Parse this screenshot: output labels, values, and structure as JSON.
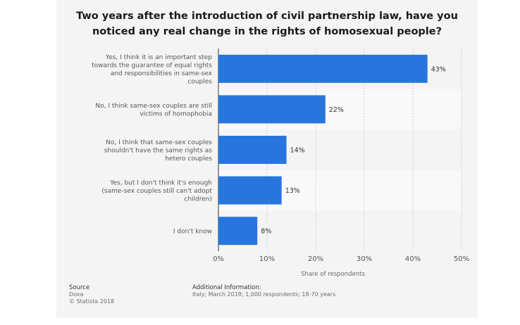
{
  "chart_data": {
    "type": "bar",
    "orientation": "horizontal",
    "title": "Two years after the introduction of civil partnership law, have you noticed any real change in the rights of homosexual people?",
    "categories": [
      "Yes, I think it is an important step towards the guarantee of equal rights and responsibilities in same-sex couples",
      "No, I think same-sex couples are still victims of homophobia",
      "No, I think that same-sex couples shouldn't have the same rights as hetero couples",
      "Yes, but I don't think it's enough (same-sex couples still can't adopt children)",
      "I don't know"
    ],
    "values": [
      43,
      22,
      14,
      13,
      8
    ],
    "value_labels": [
      "43%",
      "22%",
      "14%",
      "13%",
      "8%"
    ],
    "xlabel": "Share of respondents",
    "xlim": [
      0,
      50
    ],
    "xticks": [
      "0%",
      "10%",
      "20%",
      "30%",
      "40%",
      "50%"
    ],
    "grid": true,
    "bar_color": "#2876dd"
  },
  "footer": {
    "source_heading": "Source",
    "source_lines": [
      "Doxa",
      "© Statista 2018"
    ],
    "info_heading": "Additional Information:",
    "info_text": "Italy; March 2018; 1,000 respondents; 18-70 years"
  }
}
